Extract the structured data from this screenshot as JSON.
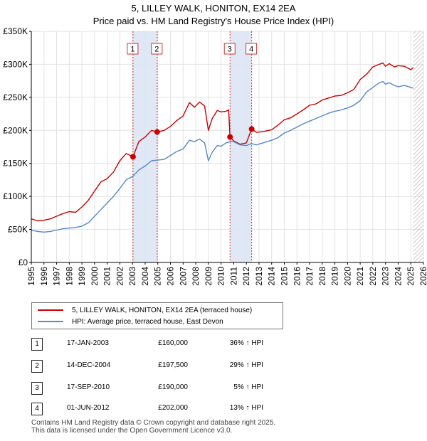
{
  "title_line1": "5, LILLEY WALK, HONITON, EX14 2EA",
  "title_line2": "Price paid vs. HM Land Registry's House Price Index (HPI)",
  "colors": {
    "price": "#cc0000",
    "hpi": "#5588cc",
    "shade": "#dde6f5",
    "vline": "#dd3333"
  },
  "chart_data": {
    "type": "line",
    "ylim": [
      0,
      350000
    ],
    "xlim": [
      1995,
      2026
    ],
    "yticks": [
      {
        "value": 0,
        "label": "£0"
      },
      {
        "value": 50000,
        "label": "£50K"
      },
      {
        "value": 100000,
        "label": "£100K"
      },
      {
        "value": 150000,
        "label": "£150K"
      },
      {
        "value": 200000,
        "label": "£200K"
      },
      {
        "value": 250000,
        "label": "£250K"
      },
      {
        "value": 300000,
        "label": "£300K"
      },
      {
        "value": 350000,
        "label": "£350K"
      }
    ],
    "xticks": [
      "1995",
      "1996",
      "1997",
      "1998",
      "1999",
      "2000",
      "2001",
      "2002",
      "2003",
      "2004",
      "2005",
      "2006",
      "2007",
      "2008",
      "2009",
      "2010",
      "2011",
      "2012",
      "2013",
      "2014",
      "2015",
      "2016",
      "2017",
      "2018",
      "2019",
      "2020",
      "2021",
      "2022",
      "2023",
      "2024",
      "2025",
      "2026"
    ],
    "shaded_ranges": [
      [
        2003.04,
        2004.95
      ],
      [
        2010.71,
        2012.42
      ]
    ],
    "hatched_from": 2025.2,
    "series": [
      {
        "name": "5, LILLEY WALK, HONITON, EX14 2EA (terraced house)",
        "key": "price",
        "x": [
          1995.0,
          1995.5,
          1996.0,
          1996.5,
          1997.0,
          1997.5,
          1998.0,
          1998.5,
          1999.0,
          1999.5,
          2000.0,
          2000.5,
          2001.0,
          2001.5,
          2002.0,
          2002.5,
          2003.04,
          2003.5,
          2004.0,
          2004.5,
          2004.95,
          2005.5,
          2006.0,
          2006.5,
          2007.0,
          2007.5,
          2007.9,
          2008.3,
          2008.7,
          2009.0,
          2009.3,
          2009.7,
          2010.0,
          2010.4,
          2010.6,
          2010.71,
          2011.0,
          2011.5,
          2012.0,
          2012.42,
          2012.8,
          2013.3,
          2014.0,
          2014.5,
          2015.0,
          2015.5,
          2016.0,
          2016.5,
          2017.0,
          2017.5,
          2018.0,
          2018.5,
          2019.0,
          2019.5,
          2020.0,
          2020.5,
          2021.0,
          2021.5,
          2022.0,
          2022.5,
          2022.8,
          2023.0,
          2023.3,
          2023.7,
          2024.0,
          2024.5,
          2025.0,
          2025.2
        ],
        "y": [
          66000,
          63000,
          64000,
          66000,
          70000,
          74000,
          77000,
          76000,
          84000,
          94000,
          108000,
          122000,
          127000,
          137000,
          154000,
          165000,
          160000,
          183000,
          190000,
          200000,
          197500,
          200000,
          206000,
          215000,
          222000,
          242000,
          235000,
          243000,
          237000,
          200000,
          218000,
          230000,
          228000,
          229000,
          231000,
          190000,
          184000,
          179000,
          181000,
          202000,
          197000,
          198000,
          201000,
          208000,
          216000,
          219000,
          225000,
          231000,
          238000,
          240000,
          246000,
          249000,
          252000,
          253000,
          257000,
          262000,
          277000,
          285000,
          296000,
          300000,
          302000,
          297000,
          301000,
          296000,
          298000,
          297000,
          292000,
          295000
        ]
      },
      {
        "name": "HPI: Average price, terraced house, East Devon",
        "key": "hpi",
        "x": [
          1995.0,
          1995.5,
          1996.0,
          1996.5,
          1997.0,
          1997.5,
          1998.0,
          1998.5,
          1999.0,
          1999.5,
          2000.0,
          2000.5,
          2001.0,
          2001.5,
          2002.0,
          2002.5,
          2003.0,
          2003.5,
          2004.0,
          2004.5,
          2005.0,
          2005.5,
          2006.0,
          2006.5,
          2007.0,
          2007.5,
          2007.9,
          2008.3,
          2008.7,
          2009.0,
          2009.3,
          2009.7,
          2010.0,
          2010.4,
          2010.7,
          2011.0,
          2011.5,
          2012.0,
          2012.4,
          2012.8,
          2013.3,
          2014.0,
          2014.5,
          2015.0,
          2015.5,
          2016.0,
          2016.5,
          2017.0,
          2017.5,
          2018.0,
          2018.5,
          2019.0,
          2019.5,
          2020.0,
          2020.5,
          2021.0,
          2021.5,
          2022.0,
          2022.5,
          2022.8,
          2023.0,
          2023.3,
          2023.7,
          2024.0,
          2024.5,
          2025.0,
          2025.2
        ],
        "y": [
          49000,
          47000,
          46000,
          47000,
          49000,
          51000,
          52000,
          53000,
          55000,
          60000,
          70000,
          80000,
          90000,
          100000,
          112000,
          125000,
          130000,
          140000,
          146000,
          154000,
          155000,
          156000,
          162000,
          168000,
          172000,
          185000,
          183000,
          187000,
          181000,
          154000,
          167000,
          177000,
          176000,
          181000,
          183000,
          183000,
          178000,
          177000,
          180000,
          178000,
          181000,
          185000,
          189000,
          196000,
          200000,
          205000,
          210000,
          214000,
          218000,
          222000,
          226000,
          229000,
          231000,
          234000,
          238000,
          245000,
          258000,
          265000,
          272000,
          274000,
          270000,
          272000,
          268000,
          266000,
          268000,
          265000,
          264000
        ]
      }
    ],
    "markers": [
      {
        "id": "1",
        "x": 2003.04,
        "y": 160000
      },
      {
        "id": "2",
        "x": 2004.95,
        "y": 197500
      },
      {
        "id": "3",
        "x": 2010.71,
        "y": 190000
      },
      {
        "id": "4",
        "x": 2012.42,
        "y": 202000
      }
    ]
  },
  "legend": {
    "price_label": "5, LILLEY WALK, HONITON, EX14 2EA (terraced house)",
    "hpi_label": "HPI: Average price, terraced house, East Devon"
  },
  "transactions": [
    {
      "id": "1",
      "date": "17-JAN-2003",
      "price": "£160,000",
      "hpi": "36% ↑ HPI"
    },
    {
      "id": "2",
      "date": "14-DEC-2004",
      "price": "£197,500",
      "hpi": "29% ↑ HPI"
    },
    {
      "id": "3",
      "date": "17-SEP-2010",
      "price": "£190,000",
      "hpi": "5% ↑ HPI"
    },
    {
      "id": "4",
      "date": "01-JUN-2012",
      "price": "£202,000",
      "hpi": "13% ↑ HPI"
    }
  ],
  "footer": {
    "line1": "Contains HM Land Registry data © Crown copyright and database right 2025.",
    "line2": "This data is licensed under the Open Government Licence v3.0."
  }
}
